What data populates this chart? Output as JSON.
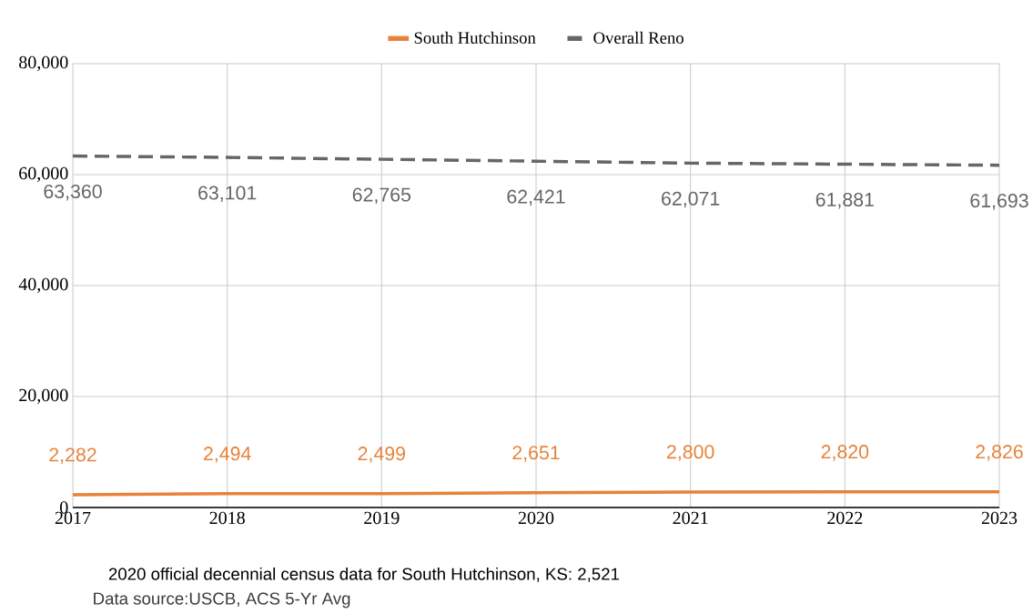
{
  "chart_data": {
    "type": "line",
    "x": [
      2017,
      2018,
      2019,
      2020,
      2021,
      2022,
      2023
    ],
    "series": [
      {
        "name": "South Hutchinson",
        "color": "#e8823a",
        "line_style": "solid",
        "values": [
          2282,
          2494,
          2499,
          2651,
          2800,
          2820,
          2826
        ],
        "value_labels": [
          "2,282",
          "2,494",
          "2,499",
          "2,651",
          "2,800",
          "2,820",
          "2,826"
        ]
      },
      {
        "name": "Overall Reno",
        "color": "#666666",
        "line_style": "dashed",
        "values": [
          63360,
          63101,
          62765,
          62421,
          62071,
          61881,
          61693
        ],
        "value_labels": [
          "63,360",
          "63,101",
          "62,765",
          "62,421",
          "62,071",
          "61,881",
          "61,693"
        ]
      }
    ],
    "xlim": [
      2017,
      2023
    ],
    "xticks": [
      2017,
      2018,
      2019,
      2020,
      2021,
      2022,
      2023
    ],
    "ylim": [
      0,
      80000
    ],
    "yticks": [
      {
        "value": 0,
        "label": "0"
      },
      {
        "value": 20000,
        "label": "20,000"
      },
      {
        "value": 40000,
        "label": "40,000"
      },
      {
        "value": 60000,
        "label": "60,000"
      },
      {
        "value": 80000,
        "label": "80,000"
      }
    ],
    "grid": true,
    "legend": "top",
    "annotations": [
      "2020 official decennial census data for South Hutchinson, KS: 2,521",
      "Data source:USCB, ACS 5-Yr Avg"
    ]
  }
}
